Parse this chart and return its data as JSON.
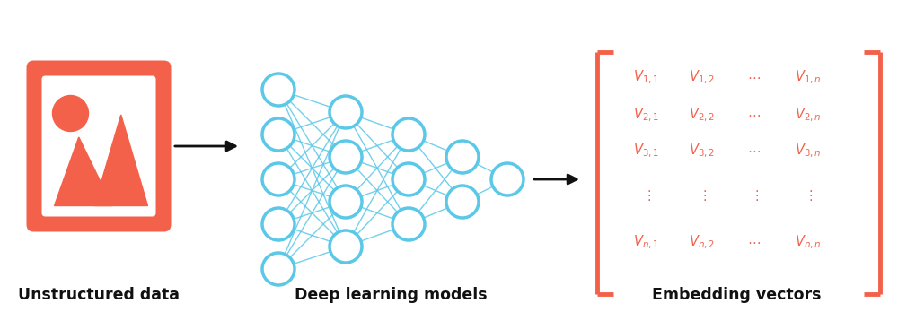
{
  "bg_color": "#ffffff",
  "coral_color": "#F4614A",
  "blue_color": "#5BC8E8",
  "black_color": "#111111",
  "label1": "Unstructured data",
  "label2": "Deep learning models",
  "label3": "Embedding vectors",
  "label_fontsize": 12.5,
  "label_fontweight": "bold",
  "fig_width": 10.0,
  "fig_height": 3.48,
  "dpi": 100
}
